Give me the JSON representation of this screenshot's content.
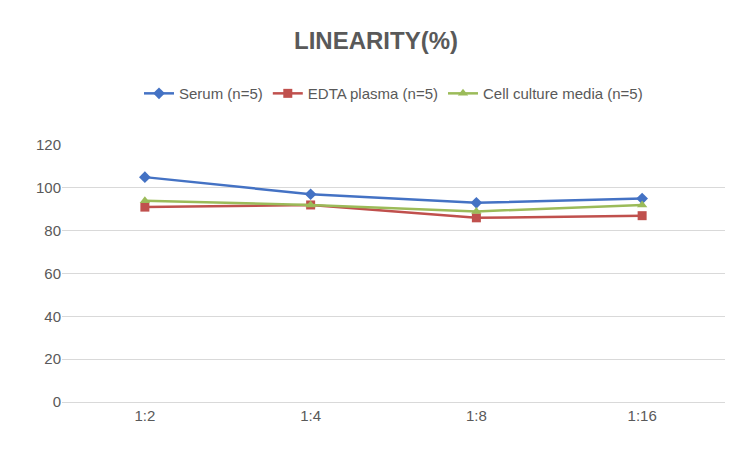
{
  "chart_data": {
    "type": "line",
    "title": "LINEARITY(%)",
    "categories": [
      "1:2",
      "1:4",
      "1:8",
      "1:16"
    ],
    "series": [
      {
        "name": "Serum (n=5)",
        "color": "#4472C4",
        "marker": "diamond",
        "values": [
          105,
          97,
          93,
          95
        ]
      },
      {
        "name": "EDTA plasma (n=5)",
        "color": "#C0504D",
        "marker": "square",
        "values": [
          91,
          92,
          86,
          87
        ]
      },
      {
        "name": "Cell culture media (n=5)",
        "color": "#9BBB59",
        "marker": "triangle",
        "values": [
          94,
          92,
          89,
          92
        ]
      }
    ],
    "ylim": [
      0,
      120
    ],
    "yticks": [
      0,
      20,
      40,
      60,
      80,
      100,
      120
    ],
    "grid": true,
    "legend": "top"
  }
}
